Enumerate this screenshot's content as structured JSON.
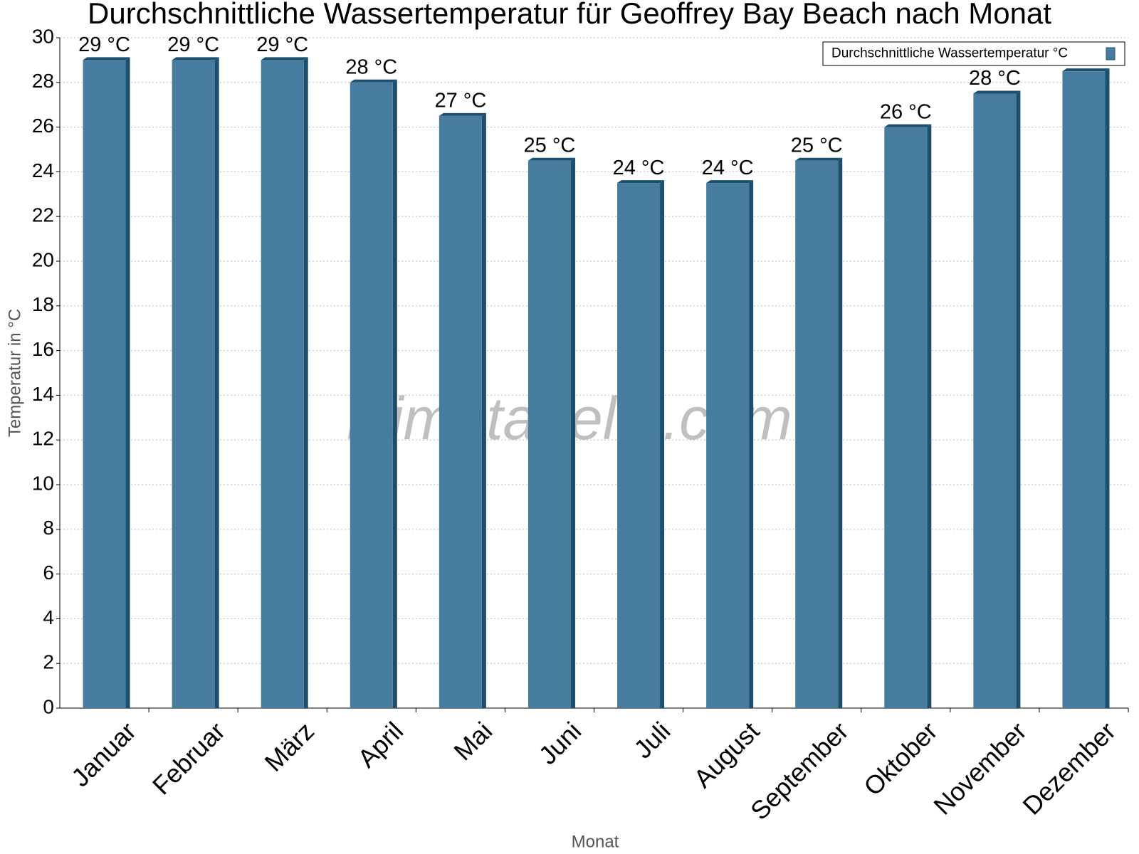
{
  "chart_data": {
    "type": "bar",
    "title": "Durchschnittliche Wassertemperatur für Geoffrey Bay Beach nach Monat",
    "x_label": "Monat",
    "y_label": "Temperatur in °C",
    "watermark": "klimatabelle.com",
    "categories": [
      "Januar",
      "Februar",
      "März",
      "April",
      "Mai",
      "Juni",
      "Juli",
      "August",
      "September",
      "Oktober",
      "November",
      "Dezember"
    ],
    "series": [
      {
        "name": "Durchschnittliche Wassertemperatur °C",
        "color": "#467c9f",
        "values": [
          29,
          29,
          29,
          28,
          26.5,
          24.5,
          23.5,
          23.5,
          24.5,
          26,
          27.5,
          28.5
        ],
        "value_labels": [
          "29 °C",
          "29 °C",
          "29 °C",
          "28 °C",
          "27 °C",
          "25 °C",
          "24 °C",
          "24 °C",
          "25 °C",
          "26 °C",
          "28 °C",
          null
        ]
      }
    ],
    "ylim": [
      0,
      30
    ],
    "yticks": [
      0,
      2,
      4,
      6,
      8,
      10,
      12,
      14,
      16,
      18,
      20,
      22,
      24,
      26,
      28,
      30
    ],
    "grid": true,
    "legend": "top-right"
  }
}
